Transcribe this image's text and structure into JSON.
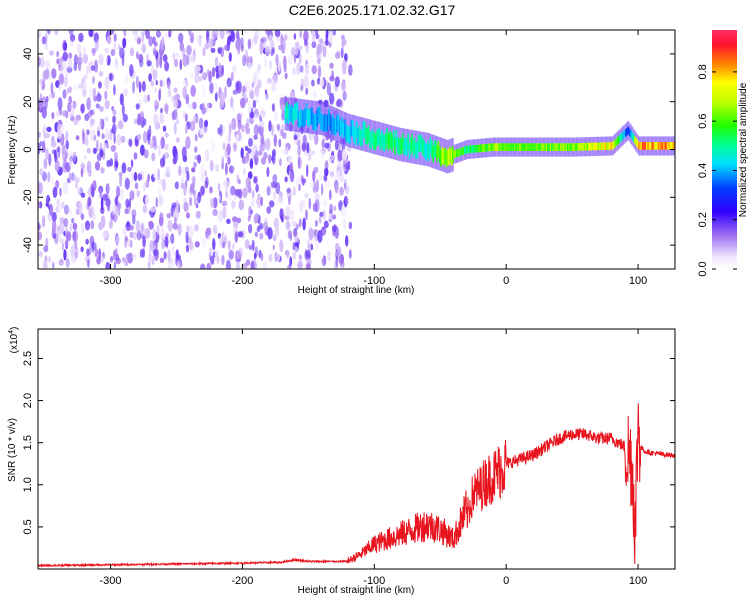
{
  "title": "C2E6.2025.171.02.32.G17",
  "chart_data": [
    {
      "type": "heatmap",
      "xlabel": "Height of straight line (km)",
      "ylabel": "Frequency (Hz)",
      "xlim": [
        -355,
        128
      ],
      "ylim": [
        -50,
        50
      ],
      "xticks": [
        -300,
        -200,
        -100,
        0,
        100
      ],
      "yticks": [
        -40,
        -20,
        0,
        20,
        40
      ],
      "colorbar": {
        "label": "Normalized spectral amplitude",
        "range": [
          0,
          0.97
        ],
        "ticks": [
          0.0,
          0.2,
          0.4,
          0.6,
          0.8
        ],
        "tick_labels": [
          "0.0",
          "0.2",
          "0.4",
          "0.6",
          "0.8"
        ]
      },
      "noise_region": {
        "x": [
          -355,
          -118
        ],
        "y": [
          -50,
          50
        ],
        "amplitude": 0.12
      },
      "signal_trace": [
        {
          "x": -168,
          "freq": 15,
          "amplitude": 0.5
        },
        {
          "x": -140,
          "freq": 13,
          "amplitude": 0.4
        },
        {
          "x": -120,
          "freq": 8,
          "amplitude": 0.45
        },
        {
          "x": -100,
          "freq": 5,
          "amplitude": 0.55
        },
        {
          "x": -80,
          "freq": 2,
          "amplitude": 0.55
        },
        {
          "x": -60,
          "freq": 0,
          "amplitude": 0.5
        },
        {
          "x": -45,
          "freq": -3,
          "amplitude": 0.75
        },
        {
          "x": -30,
          "freq": 0,
          "amplitude": 0.55
        },
        {
          "x": -10,
          "freq": 1,
          "amplitude": 0.7
        },
        {
          "x": 20,
          "freq": 1,
          "amplitude": 0.65
        },
        {
          "x": 50,
          "freq": 1,
          "amplitude": 0.7
        },
        {
          "x": 80,
          "freq": 1.5,
          "amplitude": 0.8
        },
        {
          "x": 92,
          "freq": 8,
          "amplitude": 0.3
        },
        {
          "x": 100,
          "freq": 1.5,
          "amplitude": 0.9
        },
        {
          "x": 128,
          "freq": 1.5,
          "amplitude": 0.85
        }
      ],
      "grid": false
    },
    {
      "type": "line",
      "xlabel": "Height of straight line (km)",
      "ylabel": "SNR (10 * v/v)",
      "y_multiplier": "(x10^4)",
      "multiplier_base": "(x10",
      "multiplier_exp": "4",
      "multiplier_close": ")",
      "xlim": [
        -355,
        128
      ],
      "ylim": [
        0,
        2.85
      ],
      "xticks": [
        -300,
        -200,
        -100,
        0,
        100
      ],
      "yticks": [
        0.5,
        1.0,
        1.5,
        2.0,
        2.5
      ],
      "ytick_labels": [
        "0.5",
        "1.0",
        "1.5",
        "2.0",
        "2.5"
      ],
      "series": [
        {
          "color": "#e8141e",
          "x": [
            -355,
            -300,
            -250,
            -200,
            -170,
            -160,
            -150,
            -120,
            -110,
            -100,
            -90,
            -80,
            -70,
            -60,
            -50,
            -40,
            -30,
            -25,
            -20,
            -15,
            -10,
            0,
            10,
            20,
            30,
            40,
            50,
            60,
            70,
            80,
            85,
            90,
            95,
            98,
            100,
            102,
            105,
            110,
            120,
            128
          ],
          "y": [
            0.03,
            0.04,
            0.05,
            0.06,
            0.07,
            0.1,
            0.08,
            0.08,
            0.15,
            0.25,
            0.3,
            0.35,
            0.4,
            0.45,
            0.4,
            0.3,
            0.6,
            0.9,
            0.95,
            1.05,
            1.1,
            1.25,
            1.3,
            1.35,
            1.45,
            1.55,
            1.6,
            1.6,
            1.55,
            1.55,
            1.5,
            1.45,
            1.3,
            0.5,
            1.8,
            1.45,
            1.4,
            1.38,
            1.36,
            1.35
          ]
        }
      ],
      "grid": false
    }
  ]
}
